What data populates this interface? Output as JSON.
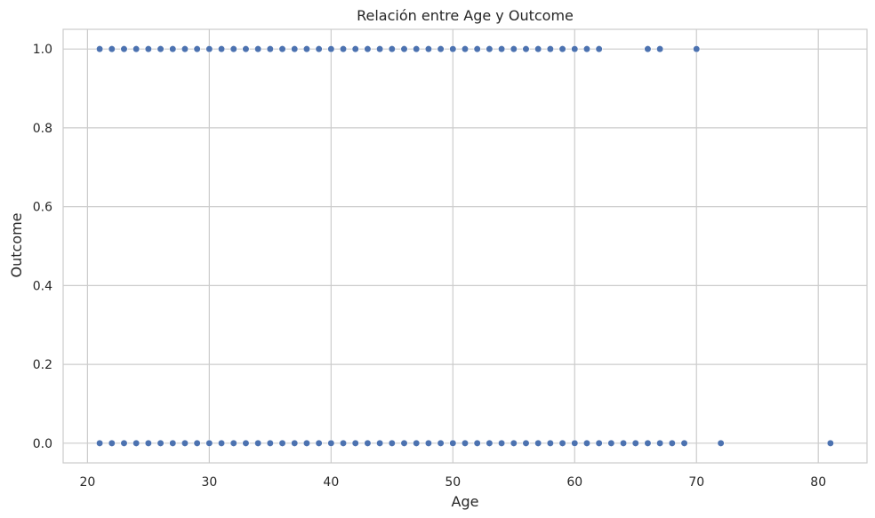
{
  "chart_data": {
    "type": "scatter",
    "title": "Relación entre Age y Outcome",
    "xlabel": "Age",
    "ylabel": "Outcome",
    "xlim": [
      18,
      84
    ],
    "ylim": [
      -0.05,
      1.05
    ],
    "xticks": [
      20,
      30,
      40,
      50,
      60,
      70,
      80
    ],
    "xtick_labels": [
      "20",
      "30",
      "40",
      "50",
      "60",
      "70",
      "80"
    ],
    "yticks": [
      0.0,
      0.2,
      0.4,
      0.6,
      0.8,
      1.0
    ],
    "ytick_labels": [
      "0.0",
      "0.2",
      "0.4",
      "0.6",
      "0.8",
      "1.0"
    ],
    "grid": true,
    "marker_color": "#4c72b0",
    "series": [
      {
        "points": [
          [
            21,
            1
          ],
          [
            22,
            1
          ],
          [
            23,
            1
          ],
          [
            24,
            1
          ],
          [
            25,
            1
          ],
          [
            26,
            1
          ],
          [
            27,
            1
          ],
          [
            28,
            1
          ],
          [
            29,
            1
          ],
          [
            30,
            1
          ],
          [
            31,
            1
          ],
          [
            32,
            1
          ],
          [
            33,
            1
          ],
          [
            34,
            1
          ],
          [
            35,
            1
          ],
          [
            36,
            1
          ],
          [
            37,
            1
          ],
          [
            38,
            1
          ],
          [
            39,
            1
          ],
          [
            40,
            1
          ],
          [
            41,
            1
          ],
          [
            42,
            1
          ],
          [
            43,
            1
          ],
          [
            44,
            1
          ],
          [
            45,
            1
          ],
          [
            46,
            1
          ],
          [
            47,
            1
          ],
          [
            48,
            1
          ],
          [
            49,
            1
          ],
          [
            50,
            1
          ],
          [
            51,
            1
          ],
          [
            52,
            1
          ],
          [
            53,
            1
          ],
          [
            54,
            1
          ],
          [
            55,
            1
          ],
          [
            56,
            1
          ],
          [
            57,
            1
          ],
          [
            58,
            1
          ],
          [
            59,
            1
          ],
          [
            60,
            1
          ],
          [
            61,
            1
          ],
          [
            62,
            1
          ],
          [
            66,
            1
          ],
          [
            67,
            1
          ],
          [
            70,
            1
          ],
          [
            21,
            0
          ],
          [
            22,
            0
          ],
          [
            23,
            0
          ],
          [
            24,
            0
          ],
          [
            25,
            0
          ],
          [
            26,
            0
          ],
          [
            27,
            0
          ],
          [
            28,
            0
          ],
          [
            29,
            0
          ],
          [
            30,
            0
          ],
          [
            31,
            0
          ],
          [
            32,
            0
          ],
          [
            33,
            0
          ],
          [
            34,
            0
          ],
          [
            35,
            0
          ],
          [
            36,
            0
          ],
          [
            37,
            0
          ],
          [
            38,
            0
          ],
          [
            39,
            0
          ],
          [
            40,
            0
          ],
          [
            41,
            0
          ],
          [
            42,
            0
          ],
          [
            43,
            0
          ],
          [
            44,
            0
          ],
          [
            45,
            0
          ],
          [
            46,
            0
          ],
          [
            47,
            0
          ],
          [
            48,
            0
          ],
          [
            49,
            0
          ],
          [
            50,
            0
          ],
          [
            51,
            0
          ],
          [
            52,
            0
          ],
          [
            53,
            0
          ],
          [
            54,
            0
          ],
          [
            55,
            0
          ],
          [
            56,
            0
          ],
          [
            57,
            0
          ],
          [
            58,
            0
          ],
          [
            59,
            0
          ],
          [
            60,
            0
          ],
          [
            61,
            0
          ],
          [
            62,
            0
          ],
          [
            63,
            0
          ],
          [
            64,
            0
          ],
          [
            65,
            0
          ],
          [
            66,
            0
          ],
          [
            67,
            0
          ],
          [
            68,
            0
          ],
          [
            69,
            0
          ],
          [
            72,
            0
          ],
          [
            81,
            0
          ]
        ]
      }
    ]
  }
}
